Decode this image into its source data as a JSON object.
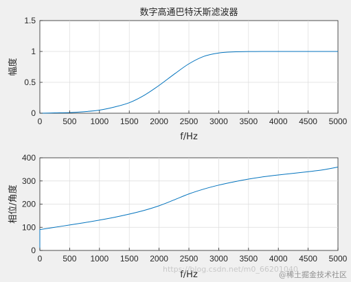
{
  "figure": {
    "background": "#f0f0f0",
    "line_color": "#0072bd"
  },
  "chart_data": [
    {
      "type": "line",
      "title": "数字高通巴特沃斯滤波器",
      "xlabel": "f/Hz",
      "ylabel": "幅度",
      "xlim": [
        0,
        5000
      ],
      "ylim": [
        0,
        1.5
      ],
      "xticks": [
        0,
        500,
        1000,
        1500,
        2000,
        2500,
        3000,
        3500,
        4000,
        4500,
        5000
      ],
      "yticks": [
        0,
        0.5,
        1,
        1.5
      ],
      "ytick_labels": [
        "0",
        "0.5",
        "1",
        "1.5"
      ],
      "grid": true,
      "series": [
        {
          "x": [
            0,
            250,
            500,
            750,
            1000,
            1250,
            1500,
            1750,
            2000,
            2250,
            2500,
            2750,
            3000,
            3250,
            3500,
            3750,
            4000,
            4500,
            5000
          ],
          "y": [
            0,
            0.005,
            0.01,
            0.025,
            0.05,
            0.1,
            0.17,
            0.29,
            0.45,
            0.63,
            0.8,
            0.92,
            0.975,
            0.993,
            0.998,
            1.0,
            1.0,
            1.0,
            1.0
          ]
        }
      ]
    },
    {
      "type": "line",
      "title": "",
      "xlabel": "f/Hz",
      "ylabel": "相位/角度",
      "xlim": [
        0,
        5000
      ],
      "ylim": [
        0,
        400
      ],
      "xticks": [
        0,
        500,
        1000,
        1500,
        2000,
        2500,
        3000,
        3500,
        4000,
        4500,
        5000
      ],
      "yticks": [
        0,
        100,
        200,
        300,
        400
      ],
      "ytick_labels": [
        "0",
        "100",
        "200",
        "300",
        "400"
      ],
      "grid": true,
      "series": [
        {
          "x": [
            0,
            250,
            500,
            750,
            1000,
            1250,
            1500,
            1750,
            2000,
            2250,
            2500,
            2750,
            3000,
            3250,
            3500,
            3750,
            4000,
            4250,
            4500,
            4750,
            5000
          ],
          "y": [
            90,
            100,
            110,
            120,
            131,
            143,
            157,
            173,
            193,
            218,
            244,
            265,
            282,
            296,
            308,
            318,
            326,
            333,
            340,
            348,
            360
          ]
        }
      ]
    }
  ],
  "watermarks": {
    "blog_url": "https://blog.csdn.net/m0_66201040",
    "community": "@稀土掘金技术社区"
  }
}
